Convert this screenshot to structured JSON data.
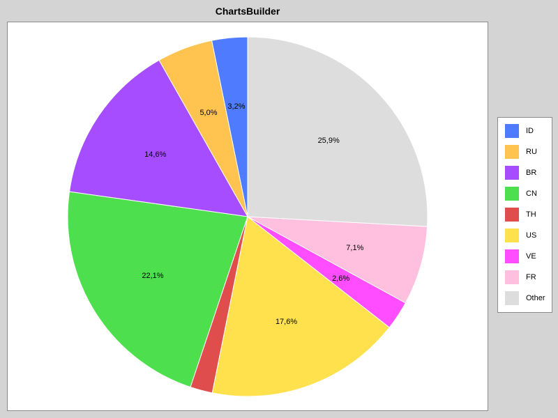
{
  "chart_data": {
    "type": "pie",
    "title": "ChartsBuilder",
    "start_angle_deg": 90,
    "direction": "counterclockwise",
    "legend_position": "right",
    "slices": [
      {
        "name": "ID",
        "value": 3.2,
        "label": "3,2%",
        "color": "#4f7bff"
      },
      {
        "name": "RU",
        "value": 5.0,
        "label": "5,0%",
        "color": "#ffc34f"
      },
      {
        "name": "BR",
        "value": 14.6,
        "label": "14,6%",
        "color": "#a54dff"
      },
      {
        "name": "CN",
        "value": 22.1,
        "label": "22,1%",
        "color": "#4ddf4d"
      },
      {
        "name": "TH",
        "value": 2.0,
        "label": "",
        "color": "#df4d4d"
      },
      {
        "name": "US",
        "value": 17.6,
        "label": "17,6%",
        "color": "#ffe14d"
      },
      {
        "name": "VE",
        "value": 2.6,
        "label": "2,6%",
        "color": "#ff4dff"
      },
      {
        "name": "FR",
        "value": 7.1,
        "label": "7,1%",
        "color": "#ffbfdf"
      },
      {
        "name": "Other",
        "value": 25.9,
        "label": "25,9%",
        "color": "#dddddd"
      }
    ]
  }
}
